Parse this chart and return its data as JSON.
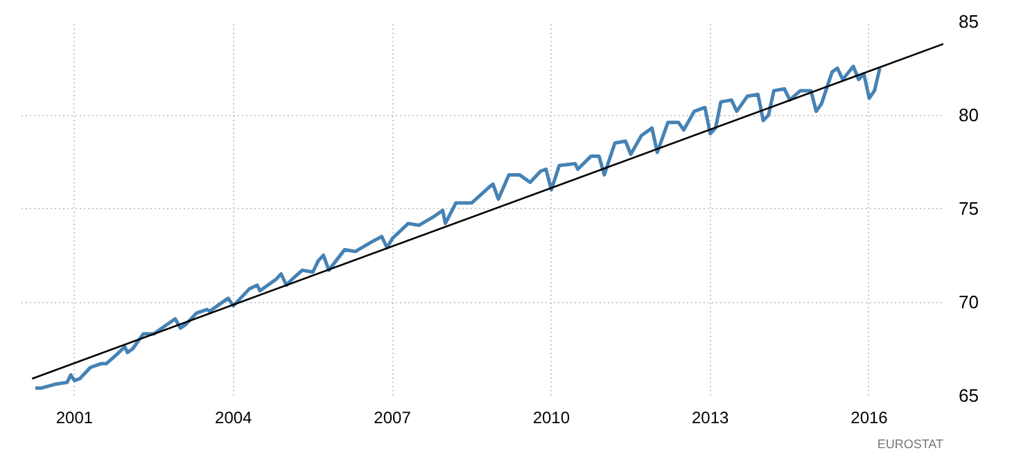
{
  "chart_data": {
    "type": "line",
    "xlim": [
      2000.0,
      2017.4
    ],
    "ylim": [
      65,
      85
    ],
    "xticks": [
      2001,
      2004,
      2007,
      2010,
      2013,
      2016
    ],
    "yticks": [
      65,
      70,
      75,
      80,
      85
    ],
    "grid": true,
    "line_style": "solid",
    "series": [
      {
        "color": "#4682b4",
        "x": [
          2000.26,
          2000.38,
          2000.63,
          2000.86,
          2000.93,
          2001.0,
          2001.1,
          2001.3,
          2001.5,
          2001.6,
          2001.8,
          2001.95,
          2002.0,
          2002.1,
          2002.3,
          2002.5,
          2002.65,
          2002.9,
          2003.0,
          2003.1,
          2003.3,
          2003.5,
          2003.55,
          2003.7,
          2003.9,
          2004.0,
          2004.3,
          2004.45,
          2004.5,
          2004.8,
          2004.9,
          2005.0,
          2005.1,
          2005.3,
          2005.5,
          2005.6,
          2005.7,
          2005.8,
          2006.1,
          2006.3,
          2006.6,
          2006.8,
          2006.9,
          2007.0,
          2007.3,
          2007.5,
          2007.8,
          2007.95,
          2008.0,
          2008.2,
          2008.5,
          2008.85,
          2008.9,
          2009.0,
          2009.2,
          2009.4,
          2009.6,
          2009.8,
          2009.9,
          2010.0,
          2010.15,
          2010.45,
          2010.5,
          2010.75,
          2010.9,
          2011.0,
          2011.2,
          2011.4,
          2011.5,
          2011.7,
          2011.9,
          2012.0,
          2012.2,
          2012.4,
          2012.5,
          2012.7,
          2012.9,
          2013.0,
          2013.1,
          2013.2,
          2013.4,
          2013.5,
          2013.7,
          2013.9,
          2014.0,
          2014.1,
          2014.2,
          2014.4,
          2014.5,
          2014.7,
          2014.9,
          2015.0,
          2015.1,
          2015.3,
          2015.4,
          2015.5,
          2015.7,
          2015.8,
          2015.9,
          2016.0,
          2016.1,
          2016.2
        ],
        "values": [
          65.4,
          65.4,
          65.6,
          65.7,
          66.1,
          65.8,
          65.9,
          66.5,
          66.7,
          66.7,
          67.2,
          67.6,
          67.3,
          67.5,
          68.3,
          68.3,
          68.6,
          69.1,
          68.6,
          68.8,
          69.4,
          69.6,
          69.5,
          69.8,
          70.2,
          69.8,
          70.7,
          70.9,
          70.6,
          71.2,
          71.5,
          70.9,
          71.2,
          71.7,
          71.6,
          72.2,
          72.5,
          71.7,
          72.8,
          72.7,
          73.2,
          73.5,
          72.9,
          73.4,
          74.2,
          74.1,
          74.6,
          74.9,
          74.2,
          75.3,
          75.3,
          76.2,
          76.3,
          75.5,
          76.8,
          76.8,
          76.4,
          77.0,
          77.1,
          76.0,
          77.3,
          77.4,
          77.1,
          77.8,
          77.8,
          76.8,
          78.5,
          78.6,
          77.9,
          78.9,
          79.3,
          78.0,
          79.6,
          79.6,
          79.2,
          80.2,
          80.4,
          79.0,
          79.3,
          80.7,
          80.8,
          80.2,
          81.0,
          81.1,
          79.7,
          80.0,
          81.3,
          81.4,
          80.8,
          81.3,
          81.3,
          80.2,
          80.6,
          82.3,
          82.5,
          81.9,
          82.6,
          81.9,
          82.2,
          80.9,
          81.3,
          82.5
        ]
      },
      {
        "color": "#000000",
        "x": [
          2000.2,
          2017.4
        ],
        "values": [
          65.9,
          83.8
        ]
      }
    ],
    "annotations": [
      "EUROSTAT"
    ]
  }
}
